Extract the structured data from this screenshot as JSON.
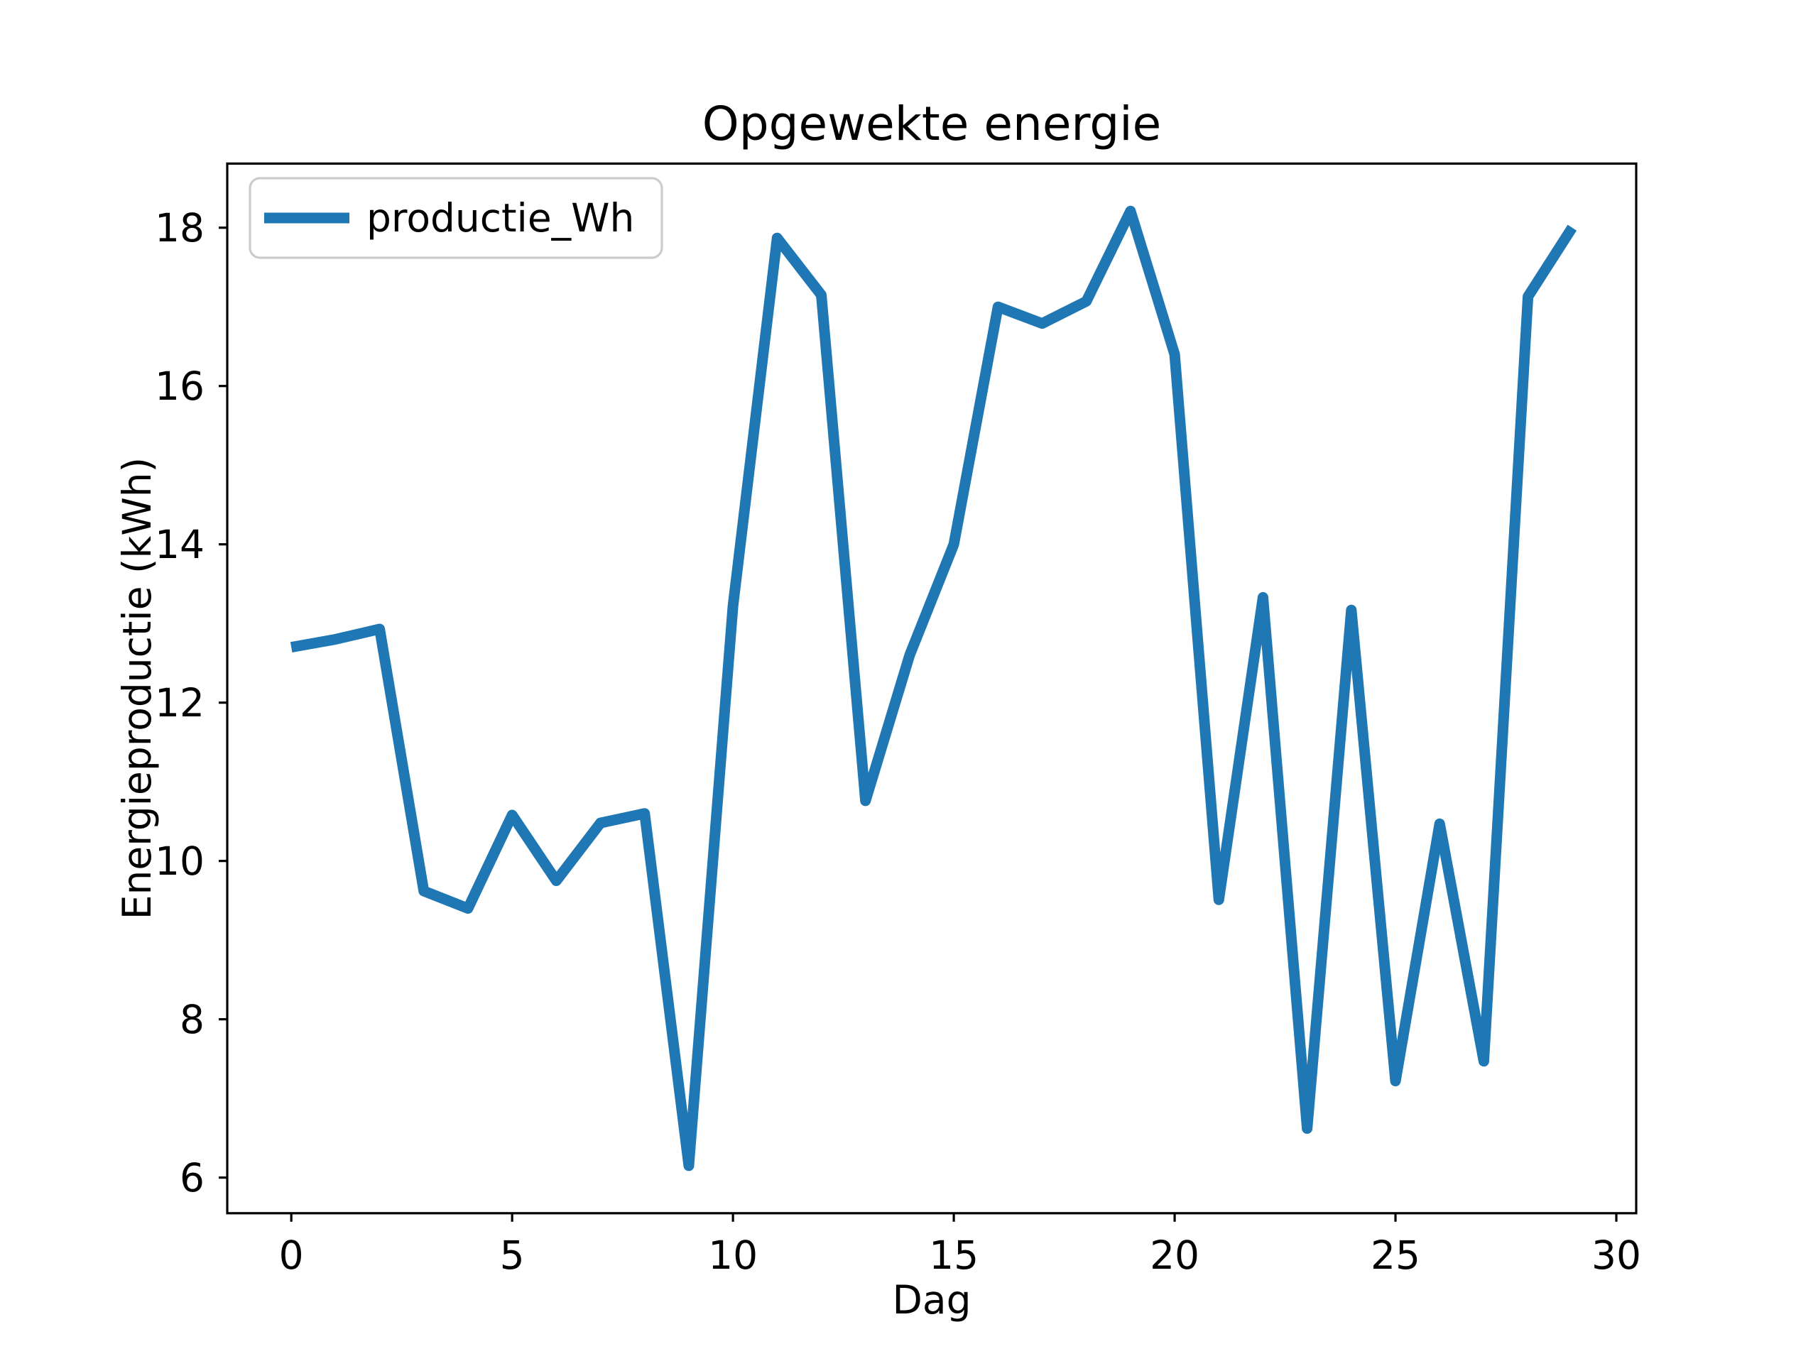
{
  "chart_data": {
    "type": "line",
    "title": "Opgewekte energie",
    "xlabel": "Dag",
    "ylabel": "Energieproductie (kWh)",
    "x": [
      0,
      1,
      2,
      3,
      4,
      5,
      6,
      7,
      8,
      9,
      10,
      11,
      12,
      13,
      14,
      15,
      16,
      17,
      18,
      19,
      20,
      21,
      22,
      23,
      24,
      25,
      26,
      27,
      28,
      29
    ],
    "series": [
      {
        "name": "productie_Wh",
        "color": "#1f77b4",
        "values": [
          12.7,
          12.8,
          12.93,
          9.62,
          9.4,
          10.58,
          9.75,
          10.48,
          10.6,
          6.15,
          13.22,
          17.87,
          17.15,
          10.76,
          12.6,
          14.0,
          17.0,
          16.79,
          17.07,
          18.21,
          16.4,
          9.51,
          13.33,
          6.62,
          13.17,
          7.22,
          10.47,
          7.47,
          17.13,
          18.0
        ]
      }
    ],
    "x_ticks": [
      0,
      5,
      10,
      15,
      20,
      25,
      30
    ],
    "y_ticks": [
      6,
      8,
      10,
      12,
      14,
      16,
      18
    ],
    "xlim": [
      -1.45,
      30.45
    ],
    "ylim": [
      5.55,
      18.81
    ],
    "grid": false,
    "legend_position": "upper left",
    "background_color": "#ffffff",
    "axis_color": "#000000",
    "legend_border_color": "#cccccc"
  }
}
